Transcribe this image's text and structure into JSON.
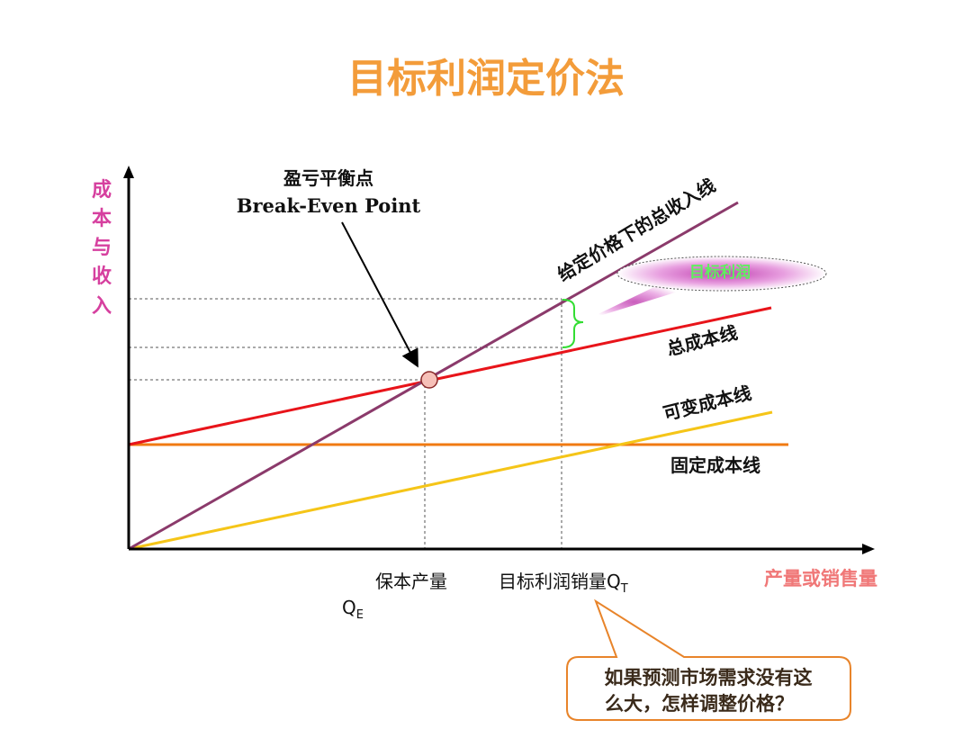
{
  "title": "目标利润定价法",
  "y_axis_label": [
    "成",
    "本",
    "与",
    "收",
    "入"
  ],
  "x_axis_label": "产量或销售量",
  "break_even": {
    "label_cn": "盈亏平衡点",
    "label_en": "Break-Even Point"
  },
  "lines": {
    "revenue": "给定价格下的总收入线",
    "total_cost": "总成本线",
    "variable_cost": "可变成本线",
    "fixed_cost": "固定成本线"
  },
  "target_profit_label": "目标利润",
  "x_ticks": {
    "qe_text": "保本产量",
    "qe_symbol": "Q",
    "qe_sub": "E",
    "qt_text": "目标利润销量Q",
    "qt_sub": "T"
  },
  "callout": {
    "line1": "如果预测市场需求没有这",
    "line2": "么大，怎样调整价格？"
  },
  "colors": {
    "title": "#f39c3a",
    "revenue_line": "#8b3a6b",
    "total_cost_line": "#e8141a",
    "variable_cost_line": "#f5c518",
    "fixed_cost_line": "#f07a12",
    "profit_brace": "#33dd33",
    "callout_border": "#e8842a"
  }
}
